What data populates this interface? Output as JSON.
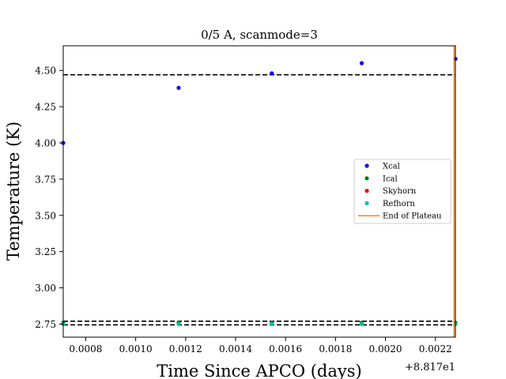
{
  "chart_data": {
    "type": "scatter",
    "title": "0/5 A, scanmode=3",
    "xlabel": "Time Since APCO (days)",
    "ylabel": "Temperature (K)",
    "x_offset_label": "+8.817e1",
    "xlim": [
      0.00071,
      0.00228
    ],
    "ylim": [
      2.66,
      4.67
    ],
    "x_ticks": [
      0.0008,
      0.001,
      0.0012,
      0.0014,
      0.0016,
      0.0018,
      0.002,
      0.0022
    ],
    "x_tick_labels": [
      "0.0008",
      "0.0010",
      "0.0012",
      "0.0014",
      "0.0016",
      "0.0018",
      "0.0020",
      "0.0022"
    ],
    "y_ticks": [
      2.75,
      3.0,
      3.25,
      3.5,
      3.75,
      4.0,
      4.25,
      4.5
    ],
    "y_tick_labels": [
      "2.75",
      "3.00",
      "3.25",
      "3.50",
      "3.75",
      "4.00",
      "4.25",
      "4.50"
    ],
    "grid": false,
    "legend_position": "center-right",
    "series": [
      {
        "name": "Xcal",
        "color": "#0000ff",
        "marker": "dot",
        "x": [
          0.00071,
          0.001172,
          0.001545,
          0.001905,
          0.00228
        ],
        "y": [
          4.0,
          4.38,
          4.48,
          4.55,
          4.58
        ]
      },
      {
        "name": "Ical",
        "color": "#008000",
        "marker": "dot",
        "x": [
          0.00071,
          0.001172,
          0.001545,
          0.001905,
          0.00228
        ],
        "y": [
          2.76,
          2.76,
          2.76,
          2.76,
          2.76
        ]
      },
      {
        "name": "Skyhorn",
        "color": "#ff0000",
        "marker": "dot",
        "x": [],
        "y": []
      },
      {
        "name": "Refhorn",
        "color": "#00bfbf",
        "marker": "dot",
        "x": [
          0.00071,
          0.001172,
          0.001545,
          0.001905,
          0.00228
        ],
        "y": [
          2.75,
          2.75,
          2.75,
          2.75,
          2.75
        ]
      },
      {
        "name": "End of Plateau",
        "color": "#ff7f0e",
        "marker": "vline",
        "x_value": 0.002275
      }
    ],
    "reference_lines": [
      {
        "y": 4.47,
        "style": "dashed",
        "color": "#000000"
      },
      {
        "y": 2.77,
        "style": "dashed",
        "color": "#000000"
      },
      {
        "y": 2.745,
        "style": "dashed",
        "color": "#000000"
      }
    ]
  }
}
